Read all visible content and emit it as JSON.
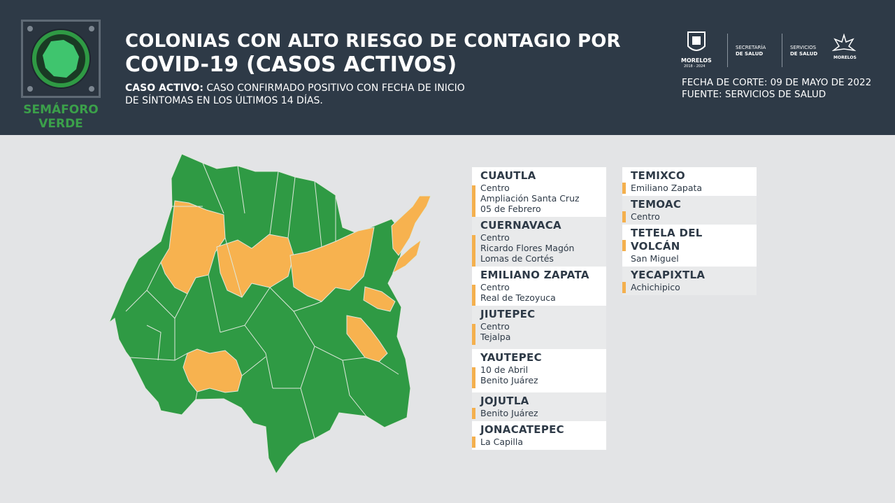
{
  "header": {
    "badge_label_1": "SEMÁFORO",
    "badge_label_2": "VERDE",
    "title_line1": "COLONIAS CON ALTO RIESGO DE CONTAGIO POR",
    "title_line2": "COVID-19 (CASOS ACTIVOS)",
    "definition_term": "CASO ACTIVO:",
    "definition_text": " CASO CONFIRMADO POSITIVO CON FECHA DE INICIO DE SÍNTOMAS EN LOS ÚLTIMOS 14 DÍAS.",
    "cutoff_date": "FECHA DE CORTE: 09 DE MAYO DE 2022",
    "source": "FUENTE: SERVICIOS DE SALUD",
    "logos": {
      "morelos": "MORELOS",
      "morelos_years": "2018 - 2024",
      "secretaria_1": "SECRETARÍA",
      "secretaria_2": "DE SALUD",
      "servicios_1": "SERVICIOS",
      "servicios_2": "DE SALUD",
      "morelos_brand": "MORELOS"
    }
  },
  "colors": {
    "header_bg": "#2e3a47",
    "green": "#2f9a44",
    "orange": "#f4b04e",
    "background": "#e3e4e6"
  },
  "municipalities_left": [
    {
      "name": "CUAUTLA",
      "colonias": [
        "Centro",
        "Ampliación Santa Cruz",
        "05 de Febrero"
      ]
    },
    {
      "name": "CUERNAVACA",
      "colonias": [
        "Centro",
        "Ricardo Flores Magón",
        "Lomas de Cortés"
      ]
    },
    {
      "name": "EMILIANO ZAPATA",
      "colonias": [
        "Centro",
        "Real de Tezoyuca"
      ]
    },
    {
      "name": "JIUTEPEC",
      "colonias": [
        "Centro",
        "Tejalpa"
      ]
    },
    {
      "name": "YAUTEPEC",
      "colonias": [
        "10 de Abril",
        "Benito Juárez"
      ]
    },
    {
      "name": "JOJUTLA",
      "colonias": [
        "Benito Juárez"
      ]
    },
    {
      "name": "JONACATEPEC",
      "colonias": [
        "La Capilla"
      ]
    }
  ],
  "municipalities_right": [
    {
      "name": "TEMIXCO",
      "colonias": [
        "Emiliano Zapata"
      ]
    },
    {
      "name": "TEMOAC",
      "colonias": [
        "Centro"
      ]
    },
    {
      "name": "TETELA DEL VOLCÁN",
      "colonias": [
        "San Miguel"
      ]
    },
    {
      "name": "YECAPIXTLA",
      "colonias": [
        "Achichipico"
      ]
    }
  ]
}
